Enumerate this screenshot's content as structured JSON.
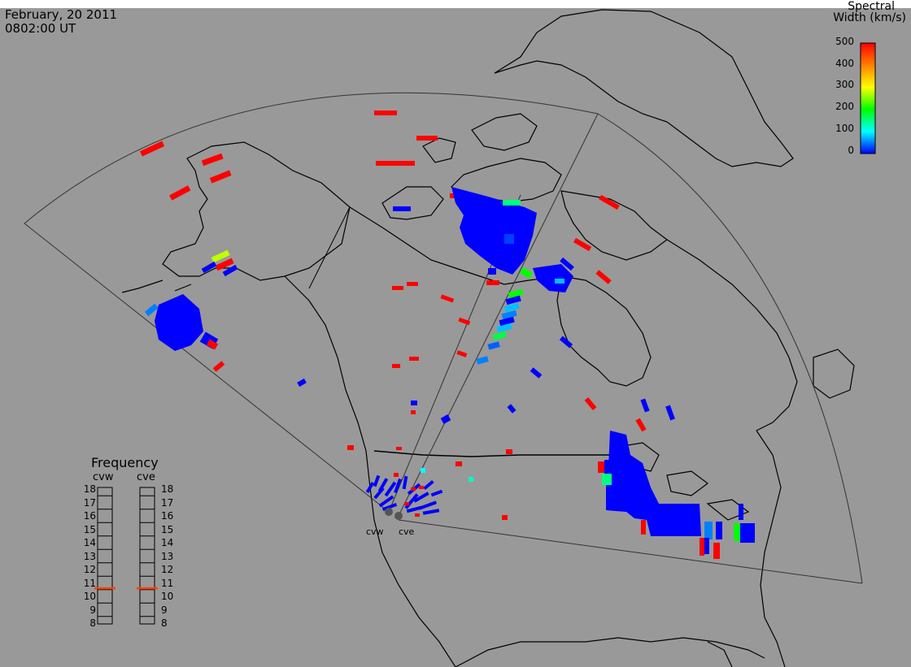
{
  "header": {
    "date": "February, 20 2011",
    "time": "0802:00 UT"
  },
  "colorbar": {
    "title_line1": "Spectral",
    "title_line2": "Width (km/s)",
    "ticks": [
      "500",
      "400",
      "300",
      "200",
      "100",
      "0"
    ],
    "colors": [
      "#ff0000",
      "#ff8000",
      "#ffff00",
      "#00ff00",
      "#00ffff",
      "#0000ff"
    ]
  },
  "frequency_panel": {
    "title": "Frequency",
    "radars": [
      "cvw",
      "cve"
    ],
    "ticks": [
      "18",
      "17",
      "16",
      "15",
      "14",
      "13",
      "12",
      "11",
      "10",
      "9",
      "8"
    ],
    "current_mhz": 10.6,
    "marker_color": "#ff4000"
  },
  "sites": {
    "west": "cvw",
    "east": "cve"
  },
  "map_colors": {
    "background": "#999999",
    "coastline": "#000000",
    "fov_outline": "#333333"
  }
}
